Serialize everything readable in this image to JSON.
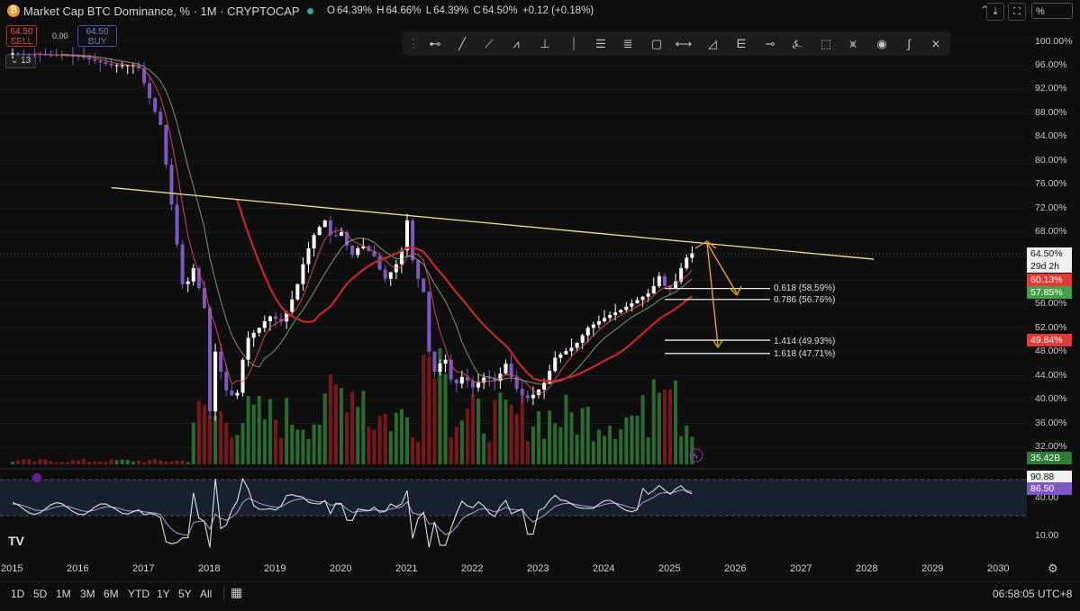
{
  "header": {
    "icon_letter": "₿",
    "title": "Market Cap BTC Dominance, % · 1M · CRYPTOCAP",
    "ohlc": {
      "o_label": "O",
      "o_value": "64.39%",
      "h_label": "H",
      "h_value": "64.66%",
      "l_label": "L",
      "l_value": "64.39%",
      "c_label": "C",
      "c_value": "64.50%",
      "change": "+0.12 (+0.18%)"
    },
    "scale_mode": "%"
  },
  "trade": {
    "sell_price": "64.50",
    "sell_label": "SELL",
    "spread": "0.00",
    "buy_price": "64.50",
    "buy_label": "BUY",
    "indicator_count": "13"
  },
  "price_axis": {
    "ticks": [
      "100.00%",
      "96.00%",
      "92.00%",
      "88.00%",
      "84.00%",
      "80.00%",
      "76.00%",
      "72.00%",
      "68.00%",
      "56.00%",
      "52.00%",
      "48.00%",
      "44.00%",
      "40.00%",
      "36.00%",
      "32.00%"
    ],
    "current_price": "64.50%",
    "countdown": "29d 2h",
    "ma_fast_label": "60.13%",
    "ma_mid_label": "57.85%",
    "ma_slow_label": "49.84%",
    "volume_label": "35.42B",
    "rsi_ticks": [
      "40.00",
      "10.00"
    ],
    "rsi_value_1": "90.88",
    "rsi_value_2": "86.50"
  },
  "fib_levels": [
    {
      "label": "0.618 (58.59%)"
    },
    {
      "label": "0.786 (56.76%)"
    },
    {
      "label": "1.414 (49.93%)"
    },
    {
      "label": "1.618 (47.71%)"
    }
  ],
  "time_axis": {
    "years": [
      "2015",
      "2016",
      "2017",
      "2018",
      "2019",
      "2020",
      "2021",
      "2022",
      "2023",
      "2024",
      "2025",
      "2026",
      "2027",
      "2028",
      "2029",
      "2030"
    ]
  },
  "bottom": {
    "ranges": [
      "1D",
      "5D",
      "1M",
      "3M",
      "6M",
      "YTD",
      "1Y",
      "5Y",
      "All"
    ],
    "clock": "06:58:05 UTC+8"
  },
  "colors": {
    "up": "#ffffff",
    "down": "#7e57c2",
    "trendline": "#f0e68c",
    "ma_slow": "#c62828",
    "projection": "#f5a623",
    "vol_up": "#2e7d32",
    "vol_down": "#8b1a1a"
  },
  "chart_data": {
    "type": "candlestick",
    "title": "Market Cap BTC Dominance, %",
    "interval": "1M",
    "ohlc_samples": [
      {
        "x": "2015",
        "close": 98
      },
      {
        "x": "2016",
        "close": 96
      },
      {
        "x": "2017",
        "close": 88
      },
      {
        "x": "2018",
        "close": 38
      },
      {
        "x": "2018",
        "close": 60
      },
      {
        "x": "2018",
        "close": 42
      },
      {
        "x": "2019",
        "close": 58
      },
      {
        "x": "2019",
        "close": 70
      },
      {
        "x": "2020",
        "close": 68
      },
      {
        "x": "2020",
        "close": 62
      },
      {
        "x": "2021",
        "close": 71
      },
      {
        "x": "2021",
        "close": 46
      },
      {
        "x": "2022",
        "close": 42
      },
      {
        "x": "2023",
        "close": 47
      },
      {
        "x": "2024",
        "close": 54
      },
      {
        "x": "2025",
        "close": 64.5
      }
    ],
    "current": {
      "open": 64.39,
      "high": 64.66,
      "low": 64.39,
      "close": 64.5
    },
    "trendline": {
      "from": {
        "x": "2016",
        "y": 75.5
      },
      "to": {
        "x": "2028",
        "y": 63.5
      }
    },
    "fib_levels": [
      58.59,
      56.76,
      49.93,
      47.71
    ],
    "ylim": [
      30,
      100
    ]
  }
}
